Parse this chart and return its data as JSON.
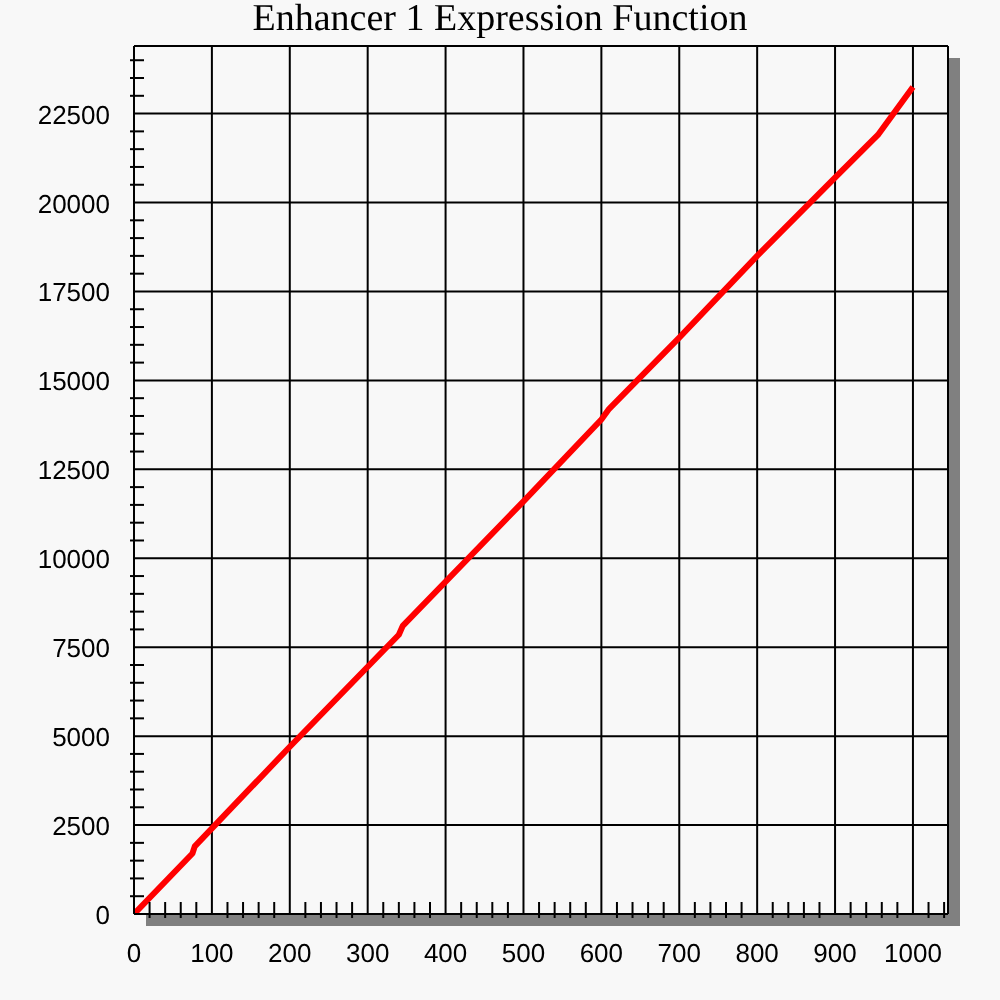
{
  "chart_data": {
    "type": "line",
    "title": "Enhancer 1 Expression Function",
    "x": [
      0,
      75,
      78,
      200,
      340,
      345,
      500,
      600,
      610,
      700,
      800,
      900,
      955,
      1000
    ],
    "series": [
      {
        "color": "#ff0000",
        "values": [
          0,
          1700,
          1900,
          4700,
          7850,
          8100,
          11600,
          13900,
          14200,
          16200,
          18500,
          20700,
          21900,
          23250
        ]
      }
    ],
    "xlim": [
      0,
      1045
    ],
    "ylim": [
      0,
      24400
    ],
    "xticks": [
      0,
      {
        "value": 20,
        "label": null
      },
      {
        "value": 40,
        "label": null
      },
      {
        "value": 60,
        "label": null
      },
      {
        "value": 80,
        "label": null
      },
      100,
      {
        "value": 120,
        "label": null
      },
      {
        "value": 140,
        "label": null
      },
      {
        "value": 160,
        "label": null
      },
      {
        "value": 180,
        "label": null
      },
      200,
      {
        "value": 220,
        "label": null
      },
      {
        "value": 240,
        "label": null
      },
      {
        "value": 260,
        "label": null
      },
      {
        "value": 280,
        "label": null
      },
      300,
      {
        "value": 320,
        "label": null
      },
      {
        "value": 340,
        "label": null
      },
      {
        "value": 360,
        "label": null
      },
      {
        "value": 380,
        "label": null
      },
      400,
      {
        "value": 420,
        "label": null
      },
      {
        "value": 440,
        "label": null
      },
      {
        "value": 460,
        "label": null
      },
      {
        "value": 480,
        "label": null
      },
      500,
      {
        "value": 520,
        "label": null
      },
      {
        "value": 540,
        "label": null
      },
      {
        "value": 560,
        "label": null
      },
      {
        "value": 580,
        "label": null
      },
      600,
      {
        "value": 620,
        "label": null
      },
      {
        "value": 640,
        "label": null
      },
      {
        "value": 660,
        "label": null
      },
      {
        "value": 680,
        "label": null
      },
      700,
      {
        "value": 720,
        "label": null
      },
      {
        "value": 740,
        "label": null
      },
      {
        "value": 760,
        "label": null
      },
      {
        "value": 780,
        "label": null
      },
      800,
      {
        "value": 820,
        "label": null
      },
      {
        "value": 840,
        "label": null
      },
      {
        "value": 860,
        "label": null
      },
      {
        "value": 880,
        "label": null
      },
      900,
      {
        "value": 920,
        "label": null
      },
      {
        "value": 940,
        "label": null
      },
      {
        "value": 960,
        "label": null
      },
      {
        "value": 980,
        "label": null
      },
      1000,
      {
        "value": 1020,
        "label": null
      },
      {
        "value": 1040,
        "label": null
      }
    ],
    "yticks": [
      0,
      {
        "value": 500,
        "label": null
      },
      {
        "value": 1000,
        "label": null
      },
      {
        "value": 1500,
        "label": null
      },
      {
        "value": 2000,
        "label": null
      },
      2500,
      {
        "value": 3000,
        "label": null
      },
      {
        "value": 3500,
        "label": null
      },
      {
        "value": 4000,
        "label": null
      },
      {
        "value": 4500,
        "label": null
      },
      5000,
      {
        "value": 5500,
        "label": null
      },
      {
        "value": 6000,
        "label": null
      },
      {
        "value": 6500,
        "label": null
      },
      {
        "value": 7000,
        "label": null
      },
      7500,
      {
        "value": 8000,
        "label": null
      },
      {
        "value": 8500,
        "label": null
      },
      {
        "value": 9000,
        "label": null
      },
      {
        "value": 9500,
        "label": null
      },
      10000,
      {
        "value": 10500,
        "label": null
      },
      {
        "value": 11000,
        "label": null
      },
      {
        "value": 11500,
        "label": null
      },
      {
        "value": 12000,
        "label": null
      },
      12500,
      {
        "value": 13000,
        "label": null
      },
      {
        "value": 13500,
        "label": null
      },
      {
        "value": 14000,
        "label": null
      },
      {
        "value": 14500,
        "label": null
      },
      15000,
      {
        "value": 15500,
        "label": null
      },
      {
        "value": 16000,
        "label": null
      },
      {
        "value": 16500,
        "label": null
      },
      {
        "value": 17000,
        "label": null
      },
      17500,
      {
        "value": 18000,
        "label": null
      },
      {
        "value": 18500,
        "label": null
      },
      {
        "value": 19000,
        "label": null
      },
      {
        "value": 19500,
        "label": null
      },
      20000,
      {
        "value": 20500,
        "label": null
      },
      {
        "value": 21000,
        "label": null
      },
      {
        "value": 21500,
        "label": null
      },
      {
        "value": 22000,
        "label": null
      },
      22500,
      {
        "value": 23000,
        "label": null
      },
      {
        "value": 23500,
        "label": null
      },
      {
        "value": 24000,
        "label": null
      }
    ],
    "grid": true,
    "marker": "none",
    "line_style": "solid"
  }
}
